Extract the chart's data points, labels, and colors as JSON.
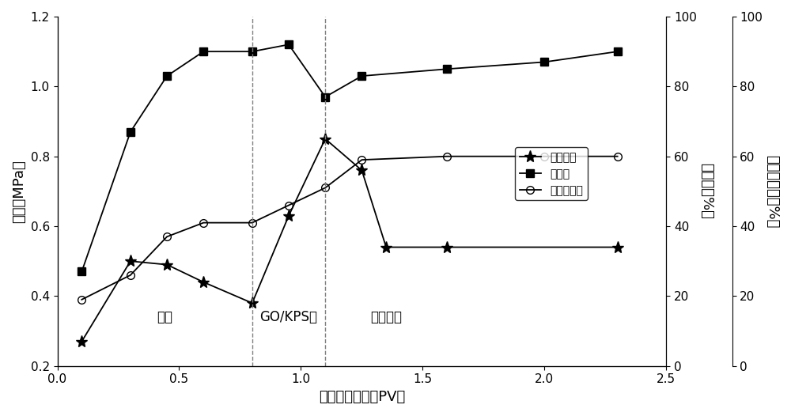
{
  "pressure_x": [
    0.1,
    0.3,
    0.45,
    0.6,
    0.8,
    0.95,
    1.1,
    1.25,
    1.35,
    1.6,
    2.3
  ],
  "pressure_y": [
    0.27,
    0.5,
    0.49,
    0.44,
    0.38,
    0.63,
    0.85,
    0.76,
    0.54,
    0.54,
    0.54
  ],
  "water_cut_x": [
    0.1,
    0.3,
    0.45,
    0.6,
    0.8,
    0.95,
    1.1,
    1.25,
    1.6,
    2.0,
    2.3
  ],
  "water_cut_y": [
    0.47,
    0.87,
    1.03,
    1.1,
    1.1,
    1.12,
    0.97,
    1.03,
    1.05,
    1.07,
    1.1
  ],
  "recovery_x": [
    0.1,
    0.3,
    0.45,
    0.6,
    0.8,
    0.95,
    1.1,
    1.25,
    1.6,
    2.0,
    2.3
  ],
  "recovery_y": [
    0.39,
    0.46,
    0.57,
    0.61,
    0.61,
    0.66,
    0.71,
    0.79,
    0.8,
    0.8,
    0.8
  ],
  "xlim": [
    0.0,
    2.5
  ],
  "ylim_left": [
    0.2,
    1.2
  ],
  "xlabel": "注入孔隙体积（PV）",
  "ylabel_left": "压差（MPa）",
  "ylabel_right1": "含水率（%）",
  "ylabel_right2": "累计采收率（%）",
  "legend_pressure": "注入压力",
  "legend_water_cut": "含水率",
  "legend_recovery": "累计采收率",
  "vline1": 0.8,
  "vline2": 1.1,
  "label_shuiqu": "水驱",
  "label_go_kps": "GO/KPS驱",
  "label_hx_shuiqu": "后续水驱",
  "background_color": "#ffffff",
  "xticks": [
    0.0,
    0.5,
    1.0,
    1.5,
    2.0,
    2.5
  ],
  "yticks_left": [
    0.2,
    0.4,
    0.6,
    0.8,
    1.0,
    1.2
  ],
  "right1_ticks_pct": [
    0,
    20,
    40,
    60,
    80,
    100
  ],
  "right2_ticks_pct": [
    0,
    20,
    40,
    60,
    80,
    100
  ]
}
